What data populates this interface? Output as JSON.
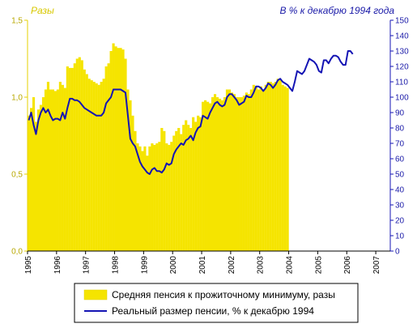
{
  "chart_data": {
    "type": "bar",
    "title": "",
    "xlabel": "",
    "left_axis": {
      "label": "Разы",
      "ylim": [
        0,
        1.5
      ],
      "ticks": [
        "0,0",
        "0,5",
        "1,0",
        "1,5"
      ],
      "color": "#e6d200"
    },
    "right_axis": {
      "label": "В % к декабрю 1994 года",
      "ylim": [
        0,
        150
      ],
      "ticks": [
        "0",
        "10",
        "20",
        "30",
        "40",
        "50",
        "60",
        "70",
        "80",
        "90",
        "100",
        "110",
        "120",
        "130",
        "140",
        "150"
      ],
      "color": "#1414b4"
    },
    "x_ticks": [
      "1995",
      "1996",
      "1997",
      "1998",
      "1999",
      "2000",
      "2001",
      "2002",
      "2003",
      "2004",
      "2005",
      "2006",
      "2007"
    ],
    "legend_position": "bottom-center",
    "series": [
      {
        "name": "Средняя пенсия к прожиточному минимуму, разы",
        "kind": "bar",
        "axis": "left",
        "color": "#f5e400",
        "monthly_start": "1995-01",
        "values": [
          0.88,
          0.93,
          1.0,
          0.84,
          0.92,
          0.95,
          1.0,
          1.05,
          1.1,
          1.05,
          1.05,
          1.04,
          1.05,
          1.1,
          1.08,
          1.06,
          1.2,
          1.19,
          1.19,
          1.22,
          1.25,
          1.26,
          1.24,
          1.18,
          1.15,
          1.12,
          1.11,
          1.1,
          1.09,
          1.08,
          1.1,
          1.12,
          1.2,
          1.22,
          1.3,
          1.35,
          1.33,
          1.32,
          1.32,
          1.31,
          1.25,
          1.05,
          0.98,
          0.88,
          0.78,
          0.7,
          0.68,
          0.65,
          0.68,
          0.62,
          0.68,
          0.7,
          0.69,
          0.7,
          0.71,
          0.8,
          0.78,
          0.7,
          0.69,
          0.71,
          0.75,
          0.78,
          0.8,
          0.76,
          0.82,
          0.85,
          0.82,
          0.8,
          0.87,
          0.84,
          0.88,
          0.87,
          0.97,
          0.98,
          0.97,
          0.96,
          1.0,
          1.02,
          1.0,
          0.99,
          0.98,
          1.0,
          1.05,
          1.05,
          1.03,
          1.02,
          1.0,
          1.0,
          1.0,
          1.01,
          1.03,
          1.02,
          1.05,
          1.08,
          1.07,
          1.05,
          1.07,
          1.05,
          1.08,
          1.1,
          1.1,
          1.09,
          1.1,
          1.12,
          1.11,
          1.08,
          1.07,
          1.06
        ]
      },
      {
        "name": "Реальный размер пенсии, % к декабрю 1994",
        "kind": "line",
        "axis": "right",
        "color": "#1414b4",
        "monthly_start": "1995-01",
        "values": [
          85,
          90,
          82,
          76,
          85,
          90,
          93,
          90,
          92,
          88,
          85,
          86,
          86,
          85,
          90,
          86,
          93,
          99,
          99,
          98,
          98,
          97,
          95,
          93,
          92,
          91,
          90,
          89,
          88,
          88,
          88,
          90,
          96,
          98,
          100,
          105,
          105,
          105,
          105,
          104,
          103,
          88,
          73,
          70,
          68,
          63,
          58,
          55,
          53,
          51,
          50,
          53,
          54,
          52,
          52,
          51,
          53,
          57,
          56,
          57,
          63,
          66,
          68,
          70,
          69,
          72,
          73,
          75,
          72,
          77,
          80,
          81,
          88,
          87,
          86,
          90,
          93,
          96,
          97,
          95,
          94,
          95,
          100,
          102,
          102,
          100,
          98,
          95,
          96,
          97,
          101,
          100,
          100,
          103,
          107,
          107,
          106,
          104,
          106,
          109,
          108,
          106,
          108,
          111,
          112,
          110,
          109,
          108,
          106,
          104,
          110,
          117,
          116,
          115,
          117,
          121,
          125,
          124,
          123,
          121,
          117,
          116,
          124,
          124,
          122,
          125,
          127,
          127,
          126,
          123,
          121,
          121,
          130,
          130,
          128
        ]
      }
    ]
  },
  "legend": {
    "items": [
      {
        "label": "Средняя пенсия к прожиточному минимуму, разы"
      },
      {
        "label": "Реальный размер пенсии, % к декабрю 1994"
      }
    ]
  }
}
